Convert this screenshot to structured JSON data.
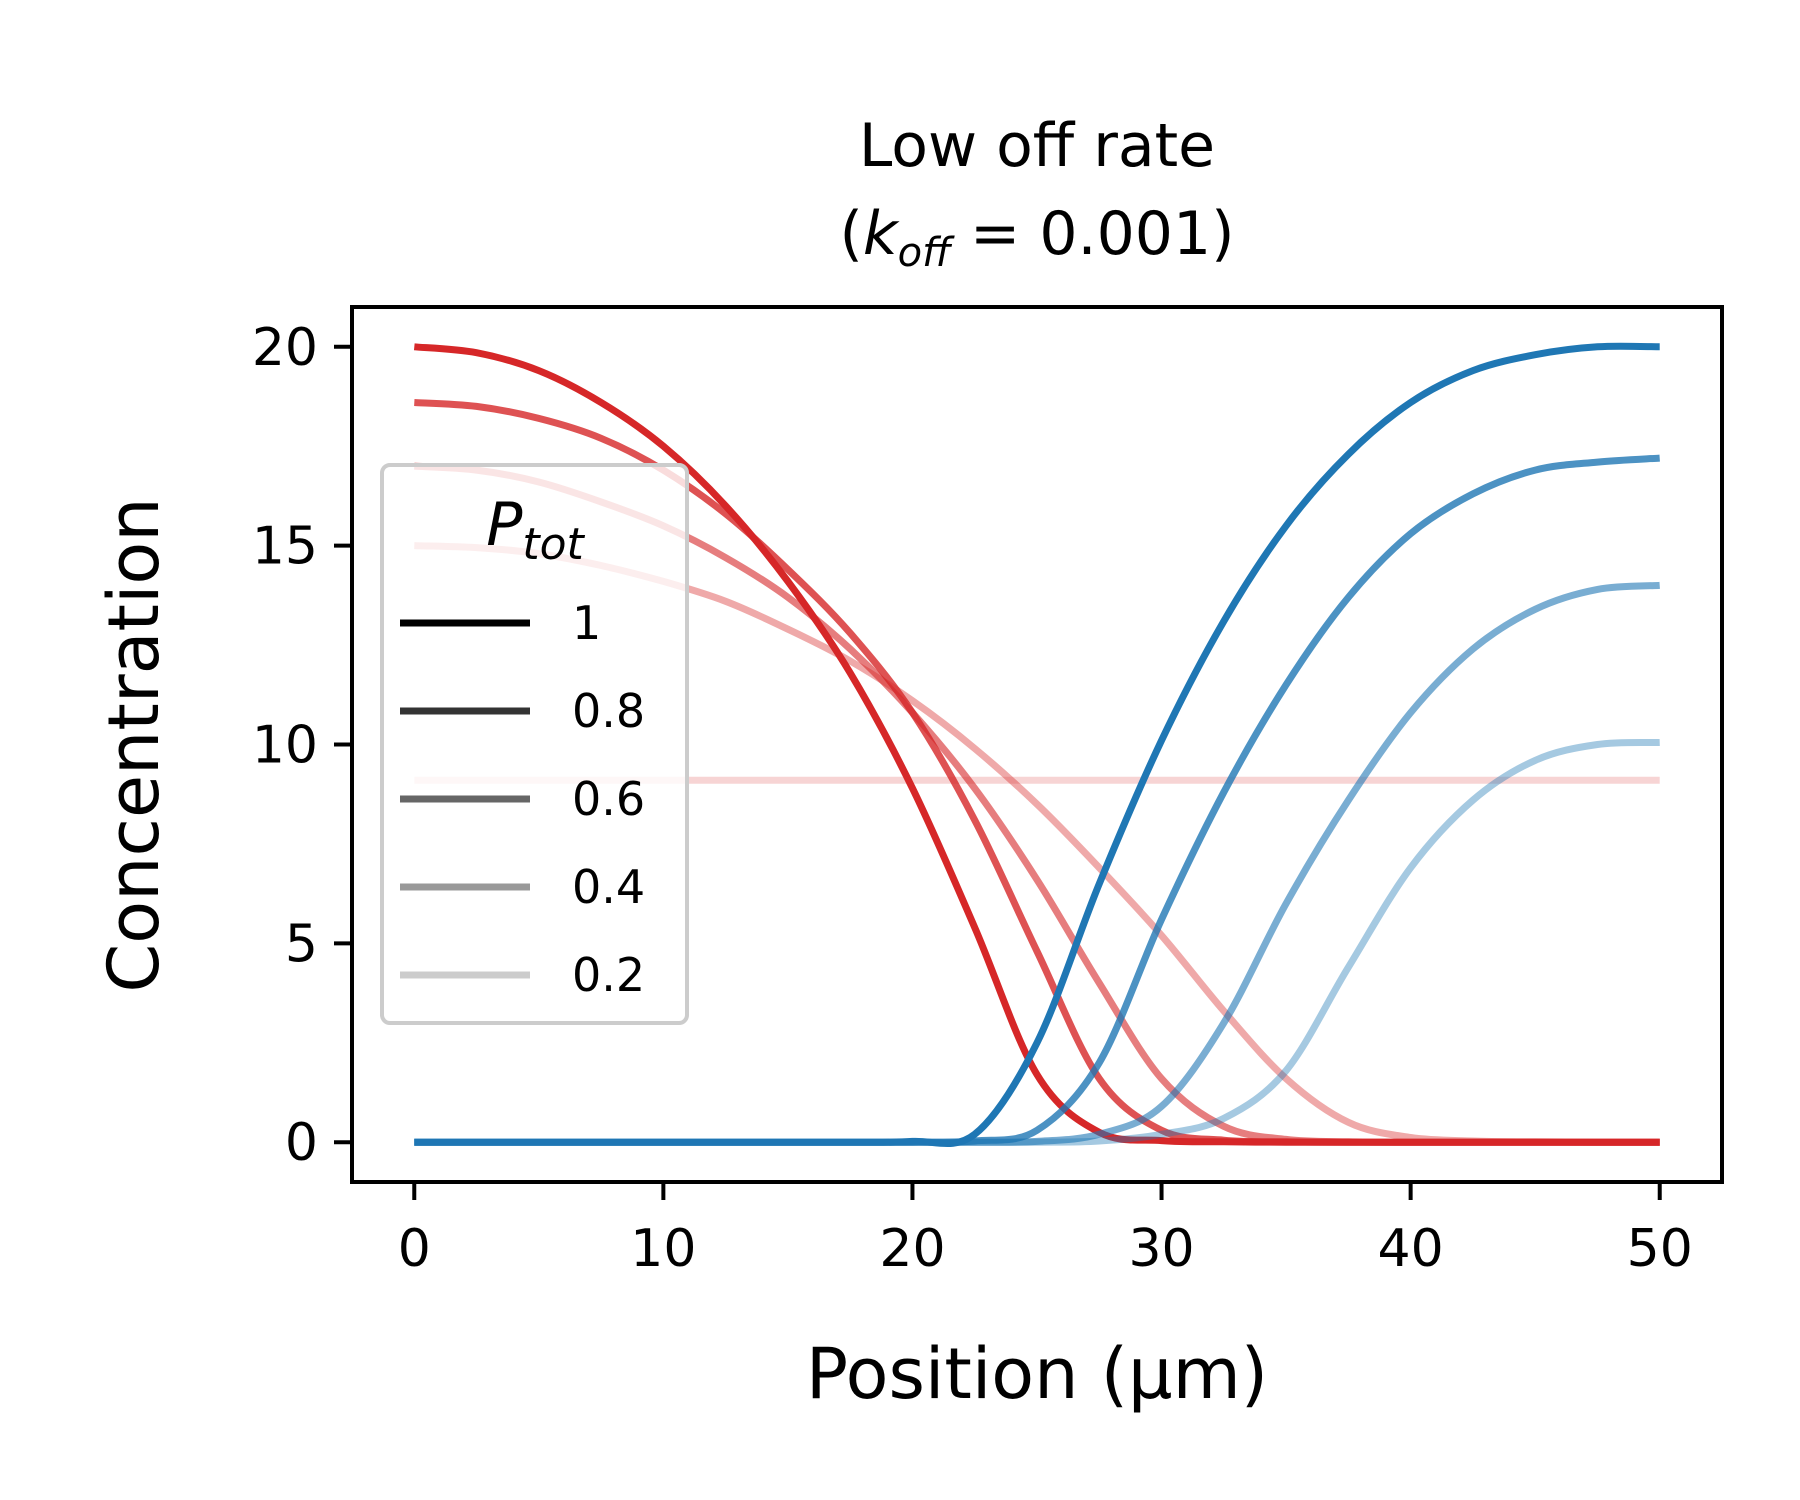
{
  "chart_data": {
    "type": "line",
    "title": {
      "line1": "Low off rate",
      "line2": {
        "open": "(",
        "k": "k",
        "sub": "off",
        "eq": " = 0.001)"
      }
    },
    "xlabel": "Position (µm)",
    "ylabel": "Concentration",
    "xlim": [
      -2.5,
      52.5
    ],
    "ylim": [
      -1.0,
      21.0
    ],
    "x_ticks": [
      0,
      10,
      20,
      30,
      40,
      50
    ],
    "x_tick_labels": [
      "0",
      "10",
      "20",
      "30",
      "40",
      "50"
    ],
    "y_ticks": [
      0,
      5,
      10,
      15,
      20
    ],
    "y_tick_labels": [
      "0",
      "5",
      "10",
      "15",
      "20"
    ],
    "grid": false,
    "legend": {
      "placement": "center-left",
      "title": {
        "P": "P",
        "sub": "tot"
      },
      "entries": [
        {
          "label": "1",
          "alpha": 1.0
        },
        {
          "label": "0.8",
          "alpha": 0.8
        },
        {
          "label": "0.6",
          "alpha": 0.6
        },
        {
          "label": "0.4",
          "alpha": 0.4
        },
        {
          "label": "0.2",
          "alpha": 0.2
        }
      ]
    },
    "colors": {
      "anterior": "#d62728",
      "posterior": "#1f77b4",
      "legend_line": "#000000"
    },
    "x": [
      0,
      2.5,
      5,
      7.5,
      10,
      12.5,
      15,
      17.5,
      20,
      22.5,
      25,
      27.5,
      30,
      32.5,
      35,
      37.5,
      40,
      42.5,
      45,
      47.5,
      50
    ],
    "series": [
      {
        "group": "anterior",
        "p_tot": "1",
        "alpha": 1.0,
        "values": [
          20.0,
          19.85,
          19.4,
          18.6,
          17.5,
          16.0,
          14.1,
          11.8,
          8.9,
          5.4,
          1.7,
          0.25,
          0.04,
          0.01,
          0,
          0,
          0,
          0,
          0,
          0,
          0
        ]
      },
      {
        "group": "anterior",
        "p_tot": "0.8",
        "alpha": 0.8,
        "values": [
          18.6,
          18.5,
          18.2,
          17.7,
          16.9,
          15.8,
          14.4,
          12.8,
          10.8,
          8.1,
          4.8,
          1.6,
          0.3,
          0.05,
          0.01,
          0,
          0,
          0,
          0,
          0,
          0
        ]
      },
      {
        "group": "anterior",
        "p_tot": "0.6",
        "alpha": 0.6,
        "values": [
          17.0,
          16.9,
          16.6,
          16.1,
          15.5,
          14.7,
          13.7,
          12.4,
          10.8,
          8.9,
          6.6,
          4.0,
          1.6,
          0.4,
          0.07,
          0.01,
          0,
          0,
          0,
          0,
          0
        ]
      },
      {
        "group": "anterior",
        "p_tot": "0.4",
        "alpha": 0.4,
        "values": [
          15.0,
          14.95,
          14.8,
          14.5,
          14.1,
          13.6,
          12.9,
          12.1,
          11.1,
          9.9,
          8.5,
          6.9,
          5.2,
          3.3,
          1.6,
          0.5,
          0.12,
          0.03,
          0.01,
          0,
          0
        ]
      },
      {
        "group": "anterior",
        "p_tot": "0.2",
        "alpha": 0.2,
        "values": [
          9.1,
          9.1,
          9.1,
          9.1,
          9.1,
          9.1,
          9.1,
          9.1,
          9.1,
          9.1,
          9.1,
          9.1,
          9.1,
          9.1,
          9.1,
          9.1,
          9.1,
          9.1,
          9.1,
          9.1,
          9.1
        ]
      },
      {
        "group": "posterior",
        "p_tot": "1",
        "alpha": 1.0,
        "values": [
          0,
          0,
          0,
          0,
          0,
          0,
          0,
          0,
          0.02,
          0.2,
          2.5,
          6.5,
          10.1,
          13.1,
          15.5,
          17.3,
          18.6,
          19.4,
          19.8,
          20.0,
          20.0
        ]
      },
      {
        "group": "posterior",
        "p_tot": "0.8",
        "alpha": 0.8,
        "values": [
          0,
          0,
          0,
          0,
          0,
          0,
          0,
          0,
          0,
          0.03,
          0.3,
          2.0,
          5.6,
          8.8,
          11.5,
          13.7,
          15.3,
          16.3,
          16.9,
          17.1,
          17.2
        ]
      },
      {
        "group": "posterior",
        "p_tot": "0.6",
        "alpha": 0.6,
        "values": [
          0,
          0,
          0,
          0,
          0,
          0,
          0,
          0,
          0,
          0,
          0.02,
          0.2,
          0.9,
          3.0,
          6.0,
          8.6,
          10.8,
          12.4,
          13.4,
          13.9,
          14.0
        ]
      },
      {
        "group": "posterior",
        "p_tot": "0.4",
        "alpha": 0.4,
        "values": [
          0,
          0,
          0,
          0,
          0,
          0,
          0,
          0,
          0,
          0,
          0,
          0.03,
          0.2,
          0.6,
          1.8,
          4.4,
          6.9,
          8.6,
          9.6,
          10.0,
          10.05
        ]
      }
    ]
  }
}
